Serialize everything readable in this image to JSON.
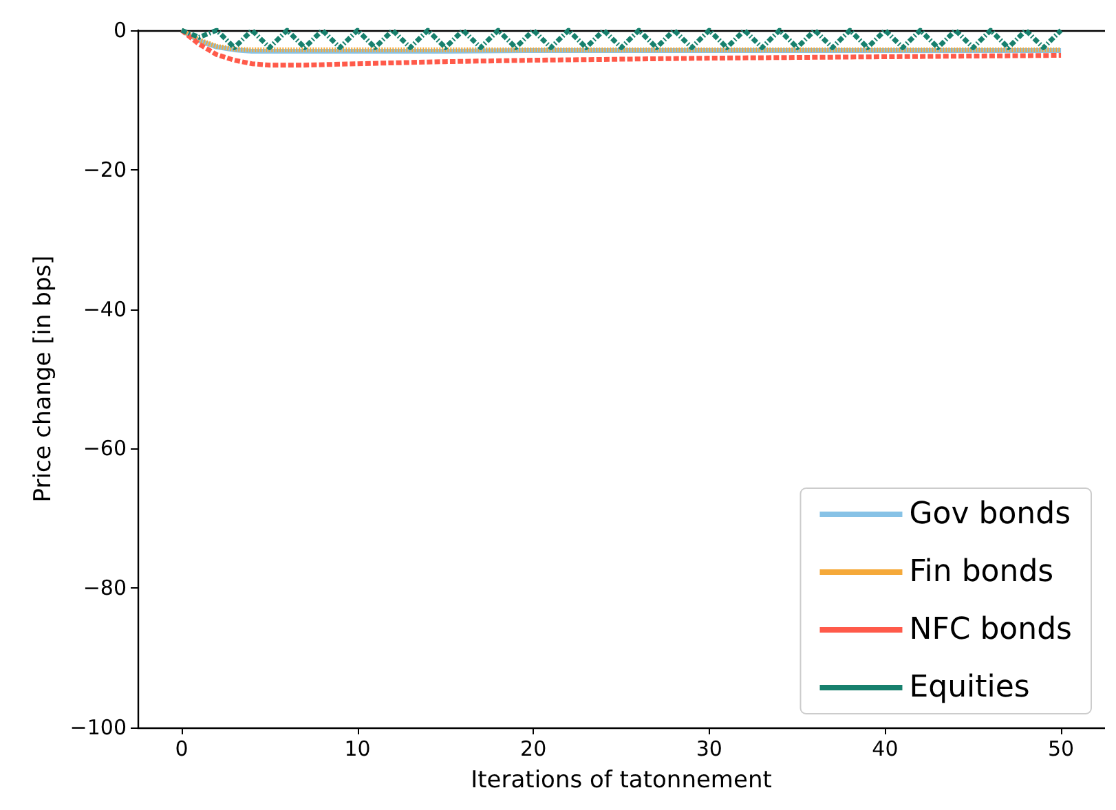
{
  "chart_data": {
    "type": "line",
    "xlabel": "Iterations of tatonnement",
    "ylabel": "Price change [in bps]",
    "xlim": [
      -2.5,
      52.5
    ],
    "xticks": [
      0,
      10,
      20,
      30,
      40,
      50
    ],
    "ylim": [
      -100,
      0
    ],
    "yticks": [
      0,
      -20,
      -40,
      -60,
      -80,
      -100
    ],
    "grid": false,
    "legend": "bottom right",
    "marker": "none",
    "series": [
      {
        "name": "Gov bonds",
        "color": "#87c2e6",
        "line_style": "solid",
        "x": [
          0,
          1,
          2,
          3,
          4,
          5,
          7,
          10,
          15,
          20,
          30,
          40,
          50
        ],
        "values": [
          0,
          -1.5,
          -2.4,
          -2.8,
          -3,
          -3,
          -3,
          -3,
          -3,
          -2.9,
          -2.9,
          -2.9,
          -2.9
        ]
      },
      {
        "name": "Fin bonds",
        "color": "#f5a93a",
        "line_style": "dotted",
        "x": [
          0,
          1,
          2,
          3,
          4,
          5,
          7,
          10,
          15,
          20,
          30,
          40,
          50
        ],
        "values": [
          0,
          -1.4,
          -2.3,
          -2.7,
          -2.8,
          -2.8,
          -2.8,
          -2.8,
          -2.8,
          -2.8,
          -2.8,
          -2.8,
          -2.8
        ]
      },
      {
        "name": "NFC bonds",
        "color": "#ff5a4a",
        "line_style": "dashed",
        "x": [
          0,
          1,
          2,
          3,
          4,
          5,
          7,
          10,
          15,
          20,
          30,
          40,
          50
        ],
        "values": [
          0,
          -2,
          -3.5,
          -4.3,
          -4.8,
          -5,
          -5,
          -4.8,
          -4.5,
          -4.3,
          -4,
          -3.8,
          -3.6
        ]
      },
      {
        "name": "Equities",
        "color": "#17806d",
        "line_style": "dashdot",
        "x": [
          0,
          1,
          2,
          3,
          4,
          5,
          6,
          7,
          8,
          9,
          10,
          11,
          12,
          13,
          14,
          15,
          16,
          17,
          18,
          19,
          20,
          21,
          22,
          23,
          24,
          25,
          26,
          27,
          28,
          29,
          30,
          31,
          32,
          33,
          34,
          35,
          36,
          37,
          38,
          39,
          40,
          41,
          42,
          43,
          44,
          45,
          46,
          47,
          48,
          49,
          50
        ],
        "values": [
          0,
          -1,
          0,
          -2.5,
          0,
          -2.5,
          0,
          -2.5,
          0,
          -2.5,
          0,
          -2.5,
          0,
          -2.5,
          0,
          -2.5,
          0,
          -2.5,
          0,
          -2.5,
          0,
          -2.5,
          0,
          -2.5,
          0,
          -2.5,
          0,
          -2.5,
          0,
          -2.5,
          0,
          -2.5,
          0,
          -2.5,
          0,
          -2.5,
          0,
          -2.5,
          0,
          -2.5,
          0,
          -2.5,
          0,
          -2.5,
          0,
          -2.5,
          0,
          -2.5,
          0,
          -2.5,
          0
        ]
      }
    ]
  }
}
